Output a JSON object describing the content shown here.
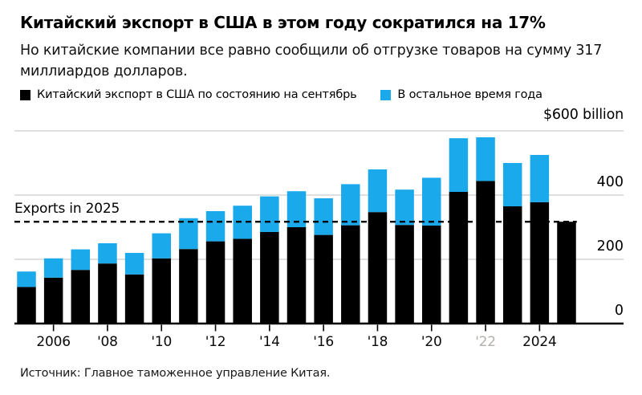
{
  "header": {
    "title": "Китайский экспорт в США в этом году сократился на 17%",
    "subtitle": "Но китайские компании все равно сообщили об отгрузке товаров на сумму 317 миллиардов долларов."
  },
  "legend": [
    {
      "label": "Китайский экспорт в США по состоянию на сентябрь",
      "color": "#000000"
    },
    {
      "label": "В остальное время года",
      "color": "#1aa9eb"
    }
  ],
  "source": "Источник: Главное таможенное управление Китая.",
  "chart_data": {
    "type": "bar",
    "stacked": true,
    "title": "Китайский экспорт в США в этом году сократился на 17%",
    "ylabel": "$600 billion",
    "ylim": [
      0,
      600
    ],
    "grid": "horizontal",
    "legend_position": "top",
    "categories": [
      "2005",
      "2006",
      "2007",
      "2008",
      "2009",
      "2010",
      "2011",
      "2012",
      "2013",
      "2014",
      "2015",
      "2016",
      "2017",
      "2018",
      "2019",
      "2020",
      "2021",
      "2022",
      "2023",
      "2024",
      "2025"
    ],
    "series": [
      {
        "name": "Китайский экспорт в США по состоянию на сентябрь",
        "color": "#000000",
        "values": [
          114,
          143,
          167,
          187,
          153,
          203,
          232,
          256,
          264,
          285,
          300,
          276,
          306,
          347,
          307,
          305,
          410,
          444,
          365,
          378,
          317
        ]
      },
      {
        "name": "В остальное время года",
        "color": "#1aa9eb",
        "values": [
          48,
          60,
          64,
          63,
          67,
          78,
          96,
          94,
          103,
          111,
          112,
          114,
          128,
          133,
          110,
          149,
          167,
          136,
          135,
          147,
          0
        ]
      }
    ],
    "totals": [
      162,
      203,
      231,
      250,
      220,
      281,
      328,
      350,
      367,
      396,
      412,
      390,
      434,
      480,
      417,
      454,
      577,
      580,
      500,
      525,
      317
    ],
    "yticks": [
      {
        "value": 600,
        "label": "$600 billion"
      },
      {
        "value": 400,
        "label": "400"
      },
      {
        "value": 200,
        "label": "200"
      },
      {
        "value": 0,
        "label": "0"
      }
    ],
    "xticks": [
      {
        "index": 1,
        "label": "2006"
      },
      {
        "index": 3,
        "label": "'08"
      },
      {
        "index": 5,
        "label": "'10"
      },
      {
        "index": 7,
        "label": "'12"
      },
      {
        "index": 9,
        "label": "'14"
      },
      {
        "index": 11,
        "label": "'16"
      },
      {
        "index": 13,
        "label": "'18"
      },
      {
        "index": 15,
        "label": "'20"
      },
      {
        "index": 17,
        "label": "'22",
        "faded": true
      },
      {
        "index": 19,
        "label": "2024"
      }
    ],
    "reference_line": {
      "label": "Exports in 2025",
      "value": 317
    },
    "colors": {
      "bar_september": "#000000",
      "bar_rest_of_year": "#1aa9eb",
      "gridline": "#cccccc",
      "axis": "#000000",
      "reference_dash": "#000000"
    }
  }
}
